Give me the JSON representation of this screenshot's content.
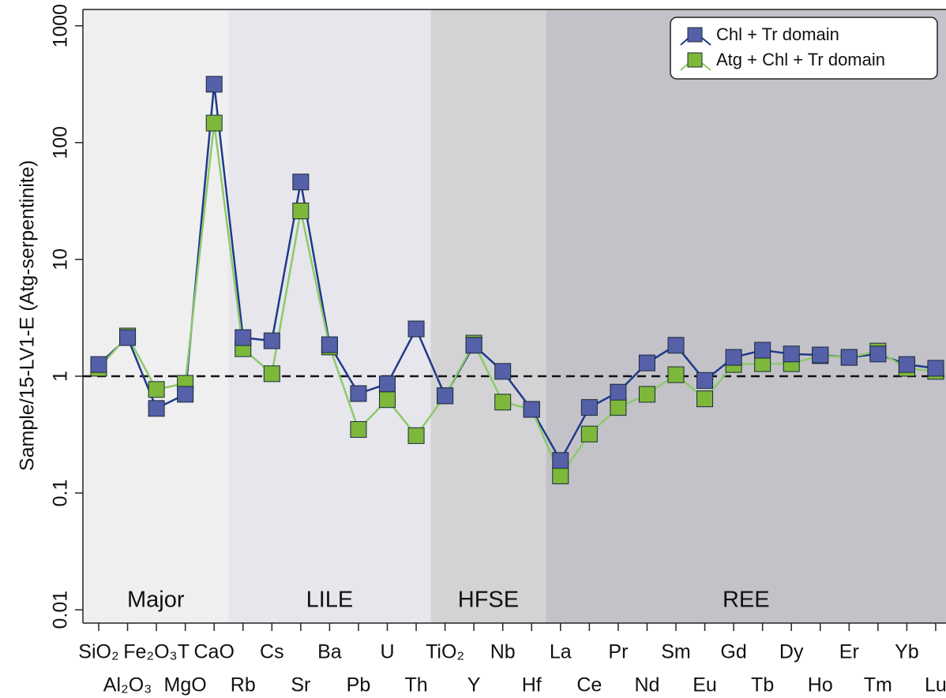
{
  "chart_data": {
    "type": "line",
    "y_label": "Sample/15-LV1-E (Atg-serpentinite)",
    "log_scale": true,
    "categories": [
      "SiO₂",
      "Al₂O₃",
      "Fe₂O₃T",
      "MgO",
      "CaO",
      "Rb",
      "Cs",
      "Sr",
      "Ba",
      "Pb",
      "U",
      "Th",
      "TiO₂",
      "Y",
      "Nb",
      "Hf",
      "La",
      "Ce",
      "Pr",
      "Nd",
      "Sm",
      "Eu",
      "Gd",
      "Tb",
      "Dy",
      "Ho",
      "Er",
      "Tm",
      "Yb",
      "Lu"
    ],
    "series": [
      {
        "name": "Chl + Tr domain",
        "color": "#1f3a8a",
        "marker_color": "#5560a8",
        "values": [
          1.26,
          2.14,
          0.53,
          0.7,
          316,
          2.14,
          2.01,
          46,
          1.86,
          0.71,
          0.86,
          2.54,
          0.68,
          1.84,
          1.1,
          0.52,
          0.19,
          0.54,
          0.73,
          1.3,
          1.84,
          0.92,
          1.45,
          1.67,
          1.55,
          1.52,
          1.45,
          1.55,
          1.26,
          1.17
        ]
      },
      {
        "name": "Atg + Chl + Tr domain",
        "color": "#8ec96a",
        "marker_color": "#7db83a",
        "values": [
          1.17,
          2.21,
          0.77,
          0.87,
          147,
          1.72,
          1.05,
          26,
          1.78,
          0.35,
          0.63,
          0.31,
          0.68,
          1.92,
          0.6,
          0.52,
          0.14,
          0.32,
          0.54,
          0.7,
          1.03,
          0.64,
          1.26,
          1.28,
          1.28,
          1.5,
          1.45,
          1.64,
          1.17,
          1.1
        ]
      }
    ],
    "regions": [
      {
        "label": "Major",
        "from": "SiO₂",
        "to": "CaO",
        "color": "#efeff0"
      },
      {
        "label": "LILE",
        "from": "Rb",
        "to": "Th",
        "color": "#e6e6ec"
      },
      {
        "label": "HFSE",
        "from": "TiO₂",
        "to": "Hf",
        "color": "#d3d3d5"
      },
      {
        "label": "REE",
        "from": "La",
        "to": "Lu",
        "color": "#c3c2c8"
      }
    ],
    "reference_line": 1,
    "ylim": [
      0.0077,
      1380
    ],
    "yticks": [
      0.01,
      0.1,
      1,
      10,
      100,
      1000
    ],
    "legend_position": "top-right"
  }
}
